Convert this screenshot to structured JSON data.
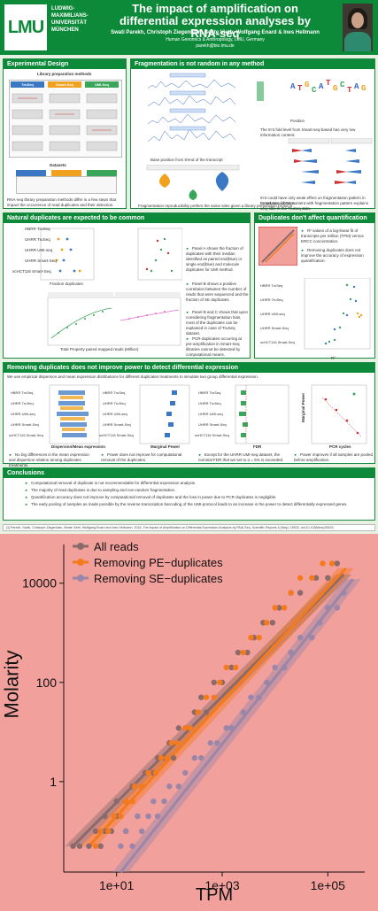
{
  "header": {
    "logo": "LMU",
    "university_lines": [
      "LUDWIG-",
      "MAXIMILIANS-",
      "UNIVERSITÄT",
      "MÜNCHEN"
    ],
    "title": "The impact of amplification on differential expression analyses by RNA-seq",
    "authors": "Swati Parekh, Christoph Ziegenhain, Beate Vieth, Wolfgang Enard & Ines Hellmann",
    "affiliation": "Human Genomics & Anthropology, LMU, Germany",
    "email": "parekh@bio.lmu.de"
  },
  "sections": {
    "experimental_design": {
      "title": "Experimental Design",
      "subtitle": "Library preparation methods",
      "datasets_label": "Datasets",
      "methods": [
        "TruSeq",
        "Smart-Seq",
        "UMI-Seq"
      ],
      "caption": "RNA-seq library preparation methods differ in a few steps that impact the occurrence of read duplicates and their detection."
    },
    "fragmentation": {
      "title": "Fragmentation is not random in any method",
      "axis_label": "Base position from 5'end of the transcript",
      "position_label": "Position",
      "panel_labels": [
        "Smart-Seq",
        "Smart-Seq-Nextera",
        "TruSeq",
        "PE",
        "SE"
      ],
      "note1": "Fragmentation reproducibility prefers the same sites given a library preparation protocol.",
      "note2": "The 5'nt fold level from Smart-seq-based has very low information content.",
      "note3": "5'nt could have only weak effect on fragmentation pattern in Smart-seq datasets.",
      "note4": "Correlation of GC content with fragmentation pattern explains very little in the TruSeq data."
    },
    "natural_duplicates": {
      "title": "Natural duplicates are expected to be common",
      "x_label": "Fraction duplicates",
      "x_label2": "Total Property paired mapped reads (Million)",
      "datasets": [
        "HBRR TruSeq",
        "UHRR TruSeq",
        "UHRR UMI-seq",
        "UHRR Smart-Seq",
        "scHCT116 Smart-Seq"
      ],
      "bullets": [
        "Panel A shows the fraction of duplicates with their median identified as paired end(blue) or single end(blue) and molecule duplicates for UMI method.",
        "Panel B shows a positive correlation between the number of reads that were sequenced and the fraction of SE duplicates.",
        "Panel B and C shows that upon considering fragmentation bias, most of the duplicates can be explained in case of TruSeq dataset.",
        "PCR-duplicates occurring at pre-amplification in Smart-Seq libraries cannot be detected by computational means."
      ]
    },
    "quantification": {
      "title": "Duplicates don't affect quantification",
      "bullets": [
        "R² values of a log-linear fit of transcripts per million (TPM) versus ERCC concentration.",
        "Removing duplicates does not improve the accuracy of expression quantification."
      ],
      "x_label": "R²"
    },
    "removing_duplicates": {
      "title": "Removing duplicates does not improve power to detect differential expression",
      "intro": "We use empirical dispersion and mean expression distributions for different duplicates treatments to simulate two group differential expression.",
      "x_labels": [
        "Dispersion/Mean expression",
        "Marginal Power",
        "FDR",
        "PCR cycles"
      ],
      "y_label": "Marginal Power",
      "notes": [
        "No big differences in the mean expression and dispersion relation among duplicates treatments.",
        "Power does not improve for computational removal of the duplicates.",
        "Except for the UHRR UMI-seq dataset, the nominal FDR that we set to α = 5% is exceeded.",
        "Power improves if all samples are pooled before amplification."
      ]
    },
    "conclusions": {
      "title": "Conclusions",
      "bullets": [
        "Computational removal of duplicate is not recommendable for differential expression analysis.",
        "The majority of read duplicates is due to sampling and non-random fragmentation.",
        "Quantification accuracy does not improve by computational removal of duplicates and the loss in power due to PCR duplicates is negligible.",
        "The early pooling of samples as made possible by the reverse transcription barcoding of the UMI-protocol leads to an increase in the power to detect differentially expressed genes."
      ]
    },
    "reference": "[1]  Parekh, Swati, Christoph Ziegenhain, Beate Vieth, Wolfgang Enard and Ines Hellmann. 2016. The impact of Amplification on Differential Expression Analyses by RNA-Seq. Scientific Reports 6 (May): 25533. doi:10.1038/srep25533."
  },
  "colors": {
    "brand_green": "#0d8a39",
    "zoom_background": "#f2a09c",
    "all_reads": "#8a6a6a",
    "pe_duplicates": "#f57a1c",
    "se_duplicates": "#9a86a8"
  },
  "chart_data": {
    "type": "scatter",
    "xlabel": "TPM",
    "ylabel": "Molarity",
    "x_scale": "log10",
    "y_scale": "log10",
    "xlim": [
      1,
      500000
    ],
    "ylim": [
      0.015,
      40000
    ],
    "x_ticks": [
      {
        "value": 10,
        "label": "1e+01"
      },
      {
        "value": 1000,
        "label": "1e+03"
      },
      {
        "value": 100000,
        "label": "1e+05"
      }
    ],
    "y_ticks": [
      {
        "value": 1,
        "label": "1"
      },
      {
        "value": 100,
        "label": "100"
      },
      {
        "value": 10000,
        "label": "10000"
      }
    ],
    "legend_position": "top-left",
    "series": [
      {
        "name": "All reads",
        "color": "#8a6a6a",
        "fit": [
          [
            1.5,
            0.05
          ],
          [
            200000,
            15000
          ]
        ],
        "points": [
          [
            1.5,
            0.05
          ],
          [
            2,
            0.05
          ],
          [
            3,
            0.05
          ],
          [
            4,
            0.1
          ],
          [
            5,
            0.05
          ],
          [
            6,
            0.1
          ],
          [
            6,
            0.2
          ],
          [
            8,
            0.1
          ],
          [
            10,
            0.2
          ],
          [
            10,
            0.4
          ],
          [
            15,
            0.1
          ],
          [
            15,
            0.4
          ],
          [
            20,
            0.8
          ],
          [
            25,
            0.2
          ],
          [
            30,
            0.8
          ],
          [
            35,
            1.5
          ],
          [
            50,
            1.5
          ],
          [
            60,
            3
          ],
          [
            80,
            3
          ],
          [
            100,
            6
          ],
          [
            120,
            3
          ],
          [
            150,
            12
          ],
          [
            200,
            12
          ],
          [
            300,
            25
          ],
          [
            400,
            50
          ],
          [
            500,
            25
          ],
          [
            700,
            100
          ],
          [
            1000,
            100
          ],
          [
            1500,
            200
          ],
          [
            2000,
            400
          ],
          [
            3000,
            400
          ],
          [
            4000,
            800
          ],
          [
            6000,
            1600
          ],
          [
            9000,
            1600
          ],
          [
            12000,
            3200
          ],
          [
            20000,
            6400
          ],
          [
            30000,
            6400
          ],
          [
            60000,
            12800
          ],
          [
            100000,
            12800
          ],
          [
            150000,
            25000
          ]
        ]
      },
      {
        "name": "Removing PE−duplicates",
        "color": "#f57a1c",
        "fit": [
          [
            3,
            0.05
          ],
          [
            220000,
            20000
          ]
        ],
        "points": [
          [
            4,
            0.05
          ],
          [
            5,
            0.1
          ],
          [
            7,
            0.1
          ],
          [
            9,
            0.2
          ],
          [
            12,
            0.2
          ],
          [
            15,
            0.4
          ],
          [
            20,
            0.4
          ],
          [
            22,
            0.8
          ],
          [
            30,
            0.8
          ],
          [
            40,
            1.5
          ],
          [
            55,
            1.5
          ],
          [
            70,
            3
          ],
          [
            90,
            3
          ],
          [
            110,
            6
          ],
          [
            140,
            6
          ],
          [
            200,
            12
          ],
          [
            250,
            12
          ],
          [
            350,
            25
          ],
          [
            500,
            50
          ],
          [
            700,
            50
          ],
          [
            900,
            100
          ],
          [
            1200,
            200
          ],
          [
            1800,
            200
          ],
          [
            2500,
            400
          ],
          [
            3500,
            800
          ],
          [
            5000,
            800
          ],
          [
            7000,
            1600
          ],
          [
            10000,
            3200
          ],
          [
            15000,
            3200
          ],
          [
            20000,
            6400
          ],
          [
            30000,
            12800
          ],
          [
            50000,
            12800
          ],
          [
            80000,
            25000
          ],
          [
            120000,
            25000
          ]
        ]
      },
      {
        "name": "Removing SE−duplicates",
        "color": "#9a86a8",
        "fit": [
          [
            12,
            0.015
          ],
          [
            300000,
            12000
          ]
        ],
        "points": [
          [
            12,
            0.05
          ],
          [
            15,
            0.1
          ],
          [
            20,
            0.05
          ],
          [
            25,
            0.2
          ],
          [
            30,
            0.1
          ],
          [
            40,
            0.2
          ],
          [
            50,
            0.4
          ],
          [
            60,
            0.2
          ],
          [
            80,
            0.4
          ],
          [
            100,
            0.8
          ],
          [
            150,
            0.8
          ],
          [
            200,
            1.5
          ],
          [
            300,
            3
          ],
          [
            400,
            3
          ],
          [
            600,
            6
          ],
          [
            800,
            6
          ],
          [
            1200,
            12
          ],
          [
            1500,
            12
          ],
          [
            2500,
            25
          ],
          [
            3500,
            50
          ],
          [
            5000,
            50
          ],
          [
            7000,
            100
          ],
          [
            10000,
            200
          ],
          [
            15000,
            200
          ],
          [
            20000,
            400
          ],
          [
            30000,
            800
          ],
          [
            50000,
            800
          ],
          [
            70000,
            1600
          ],
          [
            100000,
            3200
          ],
          [
            150000,
            3200
          ],
          [
            200000,
            6400
          ]
        ]
      }
    ]
  }
}
